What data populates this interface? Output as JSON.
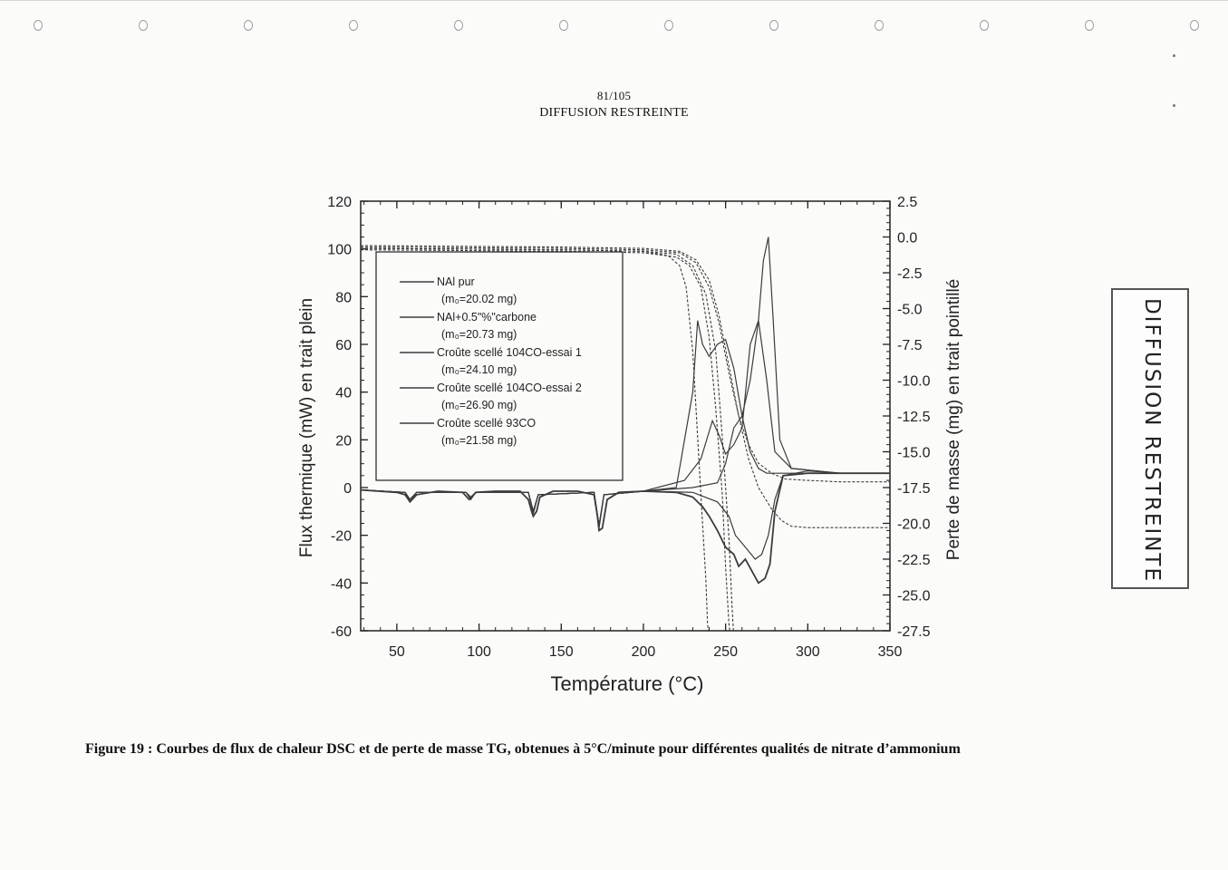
{
  "page": {
    "page_number": "81/105",
    "header_mark": "DIFFUSION RESTREINTE",
    "stamp_text": "DIFFUSION RESTREINTE",
    "caption": "Figure 19 : Courbes de flux de chaleur DSC et de perte de masse TG, obtenues à 5°C/minute pour différentes qualités de nitrate d’ammonium"
  },
  "chart_data": {
    "type": "line",
    "title": "",
    "xlabel": "Température (°C)",
    "ylabel_left": "Flux thermique (mW) en trait plein",
    "ylabel_right": "Perte de masse (mg) en trait pointillé",
    "xlim": [
      28,
      350
    ],
    "ylim_left": [
      -60,
      120
    ],
    "ylim_right": [
      -27.5,
      2.5
    ],
    "x_ticks": [
      "50",
      "100",
      "150",
      "200",
      "250",
      "300",
      "350"
    ],
    "y_left_ticks": [
      "-60",
      "-40",
      "-20",
      "0",
      "20",
      "40",
      "60",
      "80",
      "100",
      "120"
    ],
    "y_right_ticks": [
      "-27.5",
      "-25.0",
      "-22.5",
      "-20.0",
      "-17.5",
      "-15.0",
      "-12.5",
      "-10.0",
      "-7.5",
      "-5.0",
      "-2.5",
      "0.0",
      "2.5"
    ],
    "legend_position": "upper-left",
    "legend": [
      {
        "name": "NAl pur",
        "mass": "(m₀=20.02 mg)"
      },
      {
        "name": "NAl+0.5\"%\"carbone",
        "mass": "(m₀=20.73 mg)"
      },
      {
        "name": "Croûte scellé 104CO-essai 1",
        "mass": "(m₀=24.10 mg)"
      },
      {
        "name": "Croûte scellé 104CO-essai 2",
        "mass": "(m₀=26.90 mg)"
      },
      {
        "name": "Croûte scellé 93CO",
        "mass": "(m₀=21.58 mg)"
      }
    ],
    "series_color": "#3c3c3c",
    "heat_flow_series": [
      {
        "x": [
          28,
          50,
          55,
          58,
          62,
          75,
          90,
          94,
          98,
          110,
          125,
          130,
          132,
          133,
          135,
          137,
          145,
          160,
          170,
          172,
          173,
          175,
          178,
          185,
          200,
          220,
          230,
          236,
          240,
          245,
          250,
          255,
          258,
          262,
          266,
          270,
          274,
          277,
          280,
          285,
          300,
          320,
          350
        ],
        "y": [
          -1,
          -2,
          -3,
          -6,
          -3,
          -1.5,
          -2,
          -5,
          -2,
          -1.5,
          -1.5,
          -5,
          -10,
          -12,
          -10,
          -4,
          -1.5,
          -1.5,
          -3,
          -12,
          -18,
          -17,
          -5,
          -2,
          -1.5,
          -2,
          -4,
          -8,
          -12,
          -18,
          -25,
          -28,
          -33,
          -30,
          -35,
          -40,
          -38,
          -32,
          -10,
          5,
          6,
          6,
          6
        ]
      },
      {
        "x": [
          28,
          55,
          58,
          62,
          92,
          95,
          98,
          130,
          133,
          136,
          170,
          173,
          176,
          200,
          220,
          230,
          233,
          236,
          240,
          245,
          250,
          255,
          260,
          265,
          270,
          275,
          280,
          290,
          320,
          350
        ],
        "y": [
          -1,
          -2,
          -6,
          -2,
          -2,
          -5,
          -2,
          -2,
          -11,
          -3,
          -2,
          -17,
          -3,
          -1.5,
          0,
          40,
          70,
          60,
          55,
          60,
          62,
          50,
          30,
          15,
          8,
          6,
          6,
          6,
          6,
          6
        ]
      },
      {
        "x": [
          28,
          55,
          58,
          62,
          92,
          95,
          98,
          130,
          133,
          136,
          170,
          173,
          176,
          200,
          225,
          235,
          242,
          246,
          250,
          255,
          260,
          265,
          270,
          275,
          280,
          290,
          320,
          350
        ],
        "y": [
          -1,
          -2,
          -5,
          -2,
          -2,
          -4,
          -2,
          -2,
          -10,
          -3,
          -2,
          -16,
          -3,
          -1.5,
          3,
          12,
          28,
          22,
          14,
          18,
          25,
          60,
          70,
          45,
          15,
          8,
          6,
          6
        ]
      },
      {
        "x": [
          28,
          55,
          58,
          62,
          92,
          95,
          98,
          130,
          133,
          136,
          170,
          173,
          176,
          200,
          230,
          245,
          250,
          255,
          260,
          265,
          270,
          273,
          276,
          279,
          283,
          290,
          320,
          350
        ],
        "y": [
          -1,
          -2,
          -5,
          -2,
          -2,
          -4,
          -2,
          -2,
          -10,
          -3,
          -2,
          -16,
          -3,
          -1.5,
          0,
          2,
          10,
          25,
          30,
          45,
          70,
          95,
          105,
          70,
          20,
          8,
          6,
          6
        ]
      },
      {
        "x": [
          28,
          55,
          58,
          62,
          92,
          95,
          98,
          130,
          133,
          136,
          170,
          173,
          176,
          200,
          230,
          245,
          252,
          256,
          262,
          268,
          272,
          276,
          280,
          285,
          300,
          320,
          350
        ],
        "y": [
          -1,
          -2,
          -5,
          -2,
          -2,
          -4,
          -2,
          -2,
          -10,
          -3,
          -2,
          -16,
          -3,
          -1.5,
          -2,
          -6,
          -12,
          -20,
          -25,
          -30,
          -28,
          -20,
          -5,
          5,
          7,
          6,
          6
        ]
      }
    ],
    "mass_loss_series": [
      {
        "x": [
          28,
          150,
          200,
          215,
          222,
          226,
          230,
          233,
          236,
          238,
          239,
          240
        ],
        "y": [
          -0.8,
          -0.9,
          -1.0,
          -1.3,
          -2.0,
          -3.5,
          -8,
          -14,
          -20,
          -24,
          -27,
          -28
        ]
      },
      {
        "x": [
          28,
          150,
          200,
          220,
          228,
          235,
          240,
          244,
          248,
          250,
          252,
          253
        ],
        "y": [
          -0.9,
          -1.0,
          -1.1,
          -1.4,
          -2.0,
          -3.5,
          -7,
          -12,
          -18,
          -23,
          -27,
          -28
        ]
      },
      {
        "x": [
          28,
          150,
          200,
          220,
          230,
          238,
          244,
          248,
          252,
          254,
          255
        ],
        "y": [
          -0.8,
          -0.9,
          -1.0,
          -1.2,
          -2.0,
          -4.0,
          -8,
          -14,
          -21,
          -26,
          -28
        ]
      },
      {
        "x": [
          28,
          150,
          200,
          222,
          232,
          240,
          246,
          252,
          258,
          264,
          270,
          278,
          284,
          290,
          300,
          350
        ],
        "y": [
          -0.6,
          -0.7,
          -0.8,
          -1.0,
          -1.6,
          -3.0,
          -5.5,
          -9,
          -12.5,
          -15.5,
          -17.5,
          -19,
          -19.8,
          -20.2,
          -20.3,
          -20.3
        ]
      },
      {
        "x": [
          28,
          150,
          200,
          222,
          232,
          240,
          246,
          252,
          258,
          264,
          270,
          278,
          286,
          300,
          320,
          350
        ],
        "y": [
          -0.7,
          -0.8,
          -0.9,
          -1.1,
          -1.8,
          -3.5,
          -6,
          -9.5,
          -12.5,
          -14.5,
          -15.8,
          -16.5,
          -16.9,
          -17.0,
          -17.1,
          -17.1
        ]
      }
    ]
  }
}
